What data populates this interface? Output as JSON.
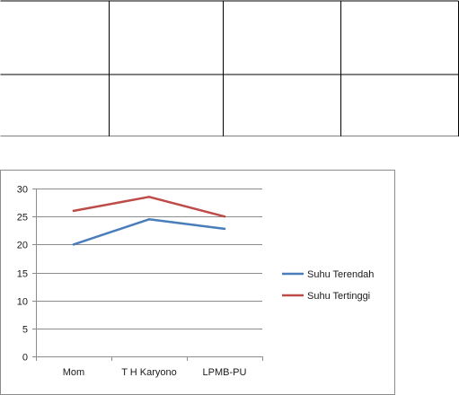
{
  "table": {
    "rows": [
      [
        "",
        "",
        "",
        ""
      ],
      [
        "",
        "",
        "",
        ""
      ]
    ]
  },
  "chart_data": {
    "type": "line",
    "categories": [
      "Mom",
      "T H Karyono",
      "LPMB-PU"
    ],
    "series": [
      {
        "name": "Suhu Terendah",
        "values": [
          20,
          24.5,
          22.8
        ],
        "color": "#4a7ebb"
      },
      {
        "name": "Suhu Tertinggi",
        "values": [
          26,
          28.5,
          25
        ],
        "color": "#be4b48"
      }
    ],
    "ylim": [
      0,
      30
    ],
    "yticks": [
      0,
      5,
      10,
      15,
      20,
      25,
      30
    ],
    "grid": true,
    "legend": "right"
  }
}
